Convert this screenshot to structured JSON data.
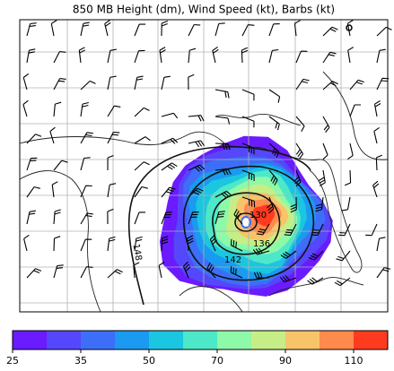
{
  "title": "850 MB Height (dm), Wind Speed (kt), Barbs (kt)",
  "contour_labels": [
    "130",
    "136",
    "142",
    "148"
  ],
  "colorbar": {
    "levels": [
      25,
      30,
      35,
      40,
      50,
      60,
      70,
      80,
      90,
      100,
      110,
      120
    ],
    "colors": [
      "#6a1bff",
      "#5547fb",
      "#3d6ef8",
      "#1a9af0",
      "#1bc6e0",
      "#4de8c8",
      "#8ef9a8",
      "#c6ee86",
      "#f7c46a",
      "#fe8a4c",
      "#ff3b1f"
    ],
    "ticks": [
      25,
      35,
      50,
      70,
      90,
      110
    ]
  }
}
